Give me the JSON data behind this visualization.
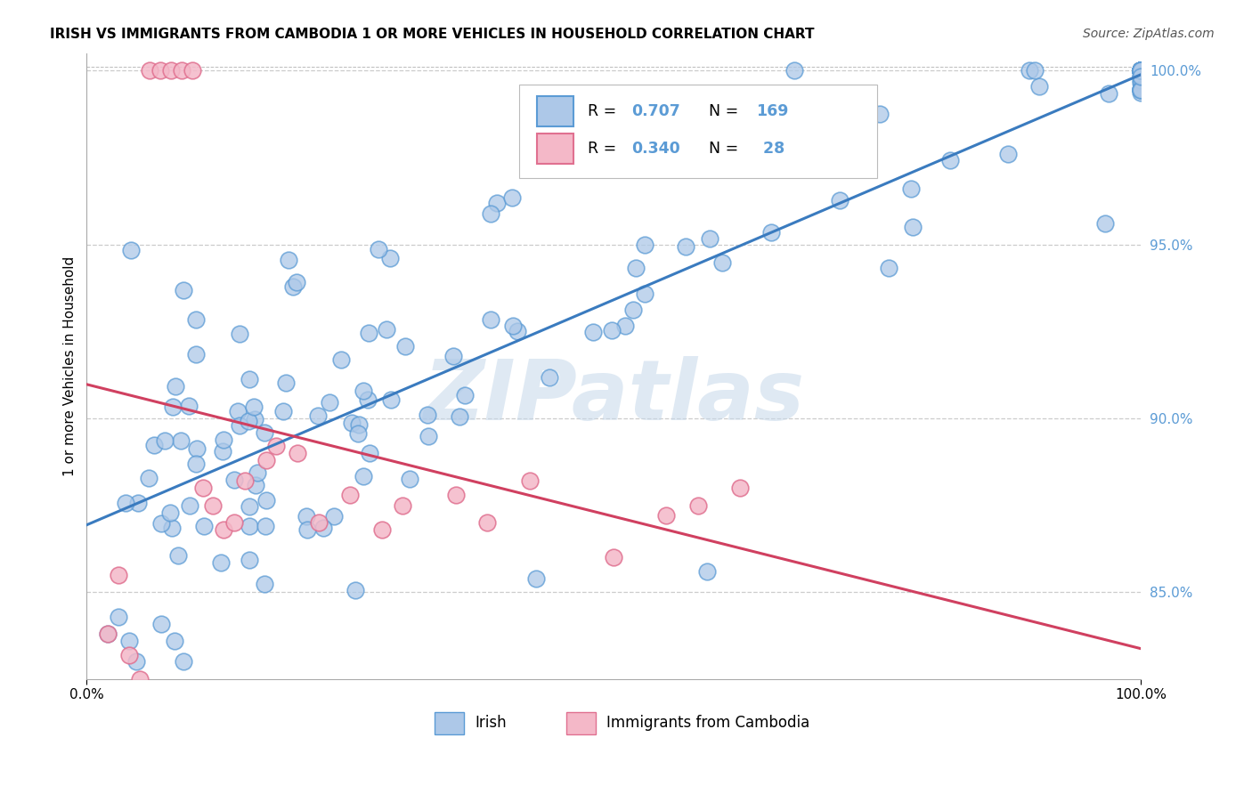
{
  "title": "IRISH VS IMMIGRANTS FROM CAMBODIA 1 OR MORE VEHICLES IN HOUSEHOLD CORRELATION CHART",
  "source_text": "Source: ZipAtlas.com",
  "ylabel": "1 or more Vehicles in Household",
  "r_irish": 0.707,
  "n_irish": 169,
  "r_cambodia": 0.34,
  "n_cambodia": 28,
  "irish_fill": "#adc8e8",
  "irish_edge": "#5b9bd5",
  "cambodia_fill": "#f4b8c8",
  "cambodia_edge": "#e07090",
  "irish_line_color": "#3a7bbf",
  "cambodia_line_color": "#d04060",
  "watermark": "ZIPatlas",
  "watermark_color": "#c5d8ea",
  "xlim": [
    0.0,
    1.0
  ],
  "ylim": [
    0.825,
    1.005
  ],
  "yticks": [
    0.85,
    0.9,
    0.95,
    1.0
  ],
  "ytick_labels": [
    "85.0%",
    "90.0%",
    "95.0%",
    "100.0%"
  ],
  "title_fontsize": 11,
  "source_fontsize": 10,
  "tick_fontsize": 11,
  "ylabel_fontsize": 11
}
